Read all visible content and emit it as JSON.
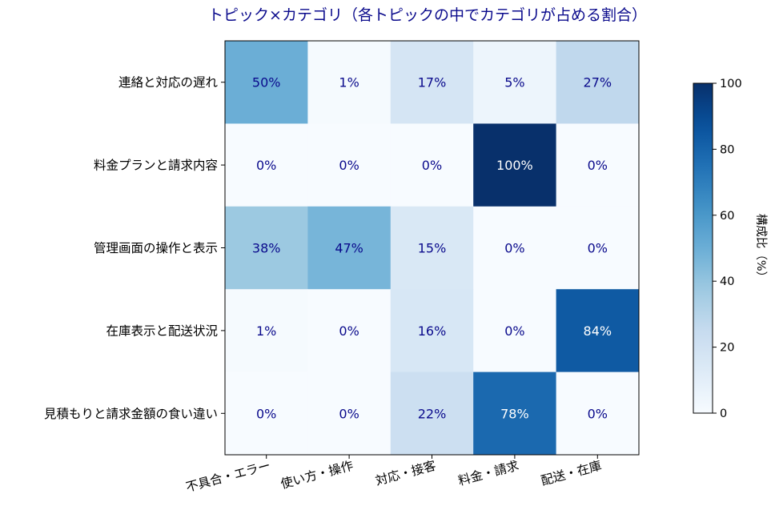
{
  "chart_data": {
    "type": "heatmap",
    "title": "トピック×カテゴリ（各トピックの中でカテゴリが占める割合）",
    "rows": [
      "連絡と対応の遅れ",
      "料金プランと請求内容",
      "管理画面の操作と表示",
      "在庫表示と配送状況",
      "見積もりと請求金額の食い違い"
    ],
    "columns": [
      "不具合・エラー",
      "使い方・操作",
      "対応・接客",
      "料金・請求",
      "配送・在庫"
    ],
    "values": [
      [
        50,
        1,
        17,
        5,
        27
      ],
      [
        0,
        0,
        0,
        100,
        0
      ],
      [
        38,
        47,
        15,
        0,
        0
      ],
      [
        1,
        0,
        16,
        0,
        84
      ],
      [
        0,
        0,
        22,
        78,
        0
      ]
    ],
    "value_suffix": "%",
    "colorbar": {
      "label": "構成比（%）",
      "range": [
        0,
        100
      ],
      "ticks": [
        "0",
        "20",
        "40",
        "60",
        "80",
        "100"
      ],
      "colormap": "Blues"
    },
    "colors": {
      "text_dark": "#0a0a8c",
      "text_light": "#ffffff",
      "title": "#0a0a8c"
    }
  }
}
